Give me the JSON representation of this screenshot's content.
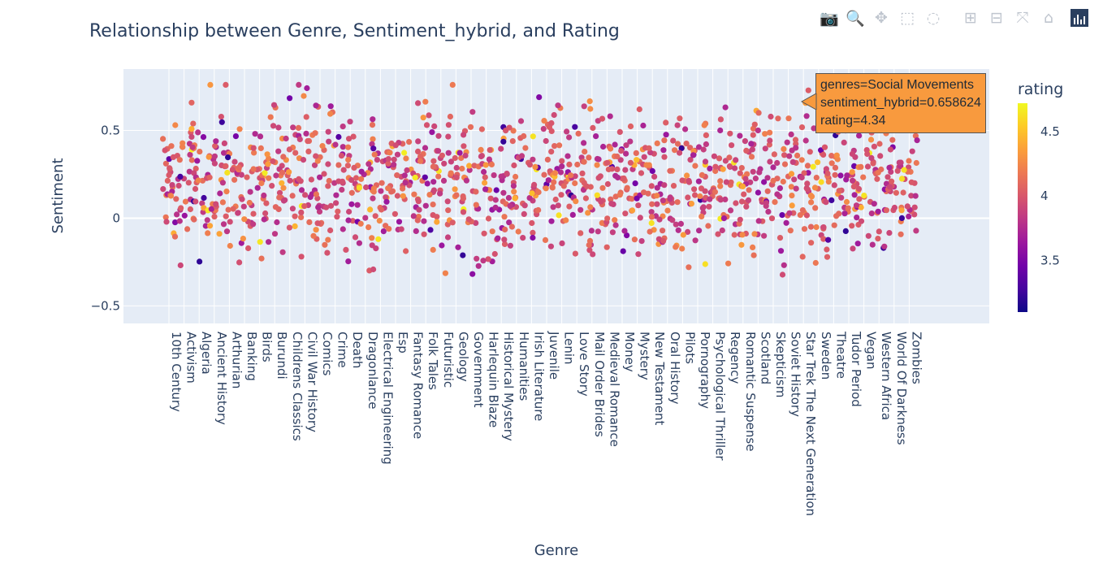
{
  "modebar": {
    "buttons": [
      {
        "name": "camera-icon",
        "glyph": "📷",
        "title": "Download plot as a png",
        "active": false
      },
      {
        "name": "zoom-icon",
        "glyph": "🔍",
        "title": "Zoom",
        "active": true
      },
      {
        "name": "pan-icon",
        "glyph": "✥",
        "title": "Pan",
        "active": false
      },
      {
        "name": "box-select-icon",
        "glyph": "⬚",
        "title": "Box Select",
        "active": false
      },
      {
        "name": "lasso-select-icon",
        "glyph": "◌",
        "title": "Lasso Select",
        "active": false
      },
      {
        "name": "zoom-in-icon",
        "glyph": "⊞",
        "title": "Zoom in",
        "active": false
      },
      {
        "name": "zoom-out-icon",
        "glyph": "⊟",
        "title": "Zoom out",
        "active": false
      },
      {
        "name": "autoscale-icon",
        "glyph": "⤧",
        "title": "Autoscale",
        "active": false
      },
      {
        "name": "reset-axes-icon",
        "glyph": "⌂",
        "title": "Reset axes",
        "active": false
      }
    ]
  },
  "tooltip": {
    "line1": "genres=Social Movements",
    "line2": "sentiment_hybrid=0.658624",
    "line3": "rating=4.34",
    "color": "#f89a3e"
  },
  "chart_data": {
    "type": "scatter",
    "title": "Relationship between Genre, Sentiment_hybrid, and Rating",
    "xlabel": "Genre",
    "ylabel": "Sentiment",
    "ylim": [
      -0.6,
      0.85
    ],
    "yticks": [
      -0.5,
      0,
      0.5
    ],
    "ytick_labels": [
      "−0.5",
      "0",
      "0.5"
    ],
    "grid": true,
    "background": "#e5ecf6",
    "categories": [
      "10th Century",
      "Activism",
      "Algeria",
      "Ancient History",
      "Arthurian",
      "Banking",
      "Birds",
      "Burundi",
      "Childrens Classics",
      "Civil War History",
      "Comics",
      "Crime",
      "Death",
      "Dragonlance",
      "Electrical Engineering",
      "Esp",
      "Fantasy Romance",
      "Folk Tales",
      "Futuristic",
      "Geology",
      "Government",
      "Harlequin Blaze",
      "Historical Mystery",
      "Humanities",
      "Irish Literature",
      "Juvenile",
      "Lenin",
      "Love Story",
      "Mail Order Brides",
      "Medieval Romance",
      "Money",
      "Mystery",
      "New Testament",
      "Oral History",
      "Pilots",
      "Pornography",
      "Psychological Thriller",
      "Regency",
      "Romantic Suspense",
      "Scotland",
      "Skepticism",
      "Soviet History",
      "Star Trek The Next Generation",
      "Sweden",
      "Theatre",
      "Tudor Period",
      "Vegan",
      "Western Africa",
      "World Of Darkness",
      "Zombies"
    ],
    "colorbar": {
      "title": "rating",
      "range": [
        3.1,
        4.72
      ],
      "ticks": [
        3.5,
        4,
        4.5
      ],
      "tick_labels": [
        "3.5",
        "4",
        "4.5"
      ],
      "colorscale": [
        "#0d0887",
        "#46039f",
        "#7201a8",
        "#9c179e",
        "#bd3786",
        "#d8576b",
        "#ed7953",
        "#fb9f3a",
        "#fdca26",
        "#f0f921"
      ]
    },
    "points_per_category": 27,
    "series": [
      {
        "name": "genres",
        "highlight": {
          "category": "Social Movements",
          "sentiment_hybrid": 0.658624,
          "rating": 4.34
        }
      }
    ]
  }
}
